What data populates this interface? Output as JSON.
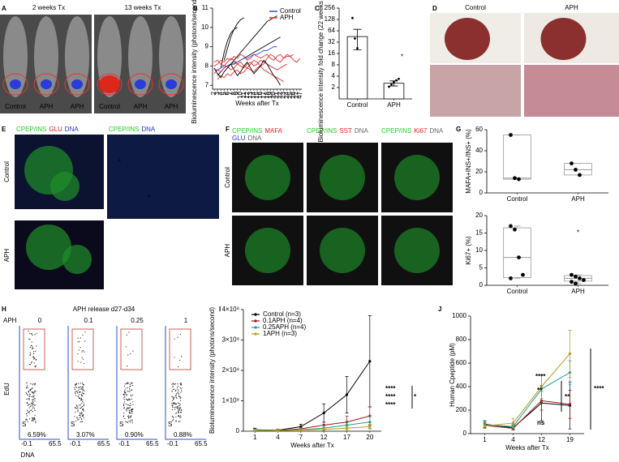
{
  "panel_labels": [
    "A",
    "B",
    "C",
    "D",
    "E",
    "F",
    "G",
    "H",
    "I",
    "J"
  ],
  "panel_A": {
    "headers": [
      "2 weeks Tx",
      "13 weeks Tx"
    ],
    "mouse_labels": [
      "Control",
      "APH",
      "APH",
      "Control",
      "APH",
      "APH"
    ]
  },
  "panel_D": {
    "headers": [
      "Control",
      "APH"
    ]
  },
  "panel_E": {
    "stains": [
      [
        {
          "text": "CPEP/INS",
          "color": "#22cc22"
        },
        {
          "text": "GLU",
          "color": "#ee2222"
        },
        {
          "text": "DNA",
          "color": "#2233dd"
        }
      ],
      [
        {
          "text": "CPEP/INS",
          "color": "#22cc22"
        },
        {
          "text": "DNA",
          "color": "#2233dd"
        }
      ]
    ],
    "rows": [
      "Control",
      "APH"
    ],
    "marks": [
      "*",
      "*"
    ]
  },
  "panel_F": {
    "stains": [
      [
        {
          "text": "CPEP/INS",
          "color": "#22cc22"
        },
        {
          "text": "MAFA",
          "color": "#ee2222"
        }
      ],
      [
        {
          "text": "GLU",
          "color": "#2233dd"
        },
        {
          "text": "DNA",
          "color": "#666666"
        }
      ],
      [
        {
          "text": "CPEP/INS",
          "color": "#22cc22"
        },
        {
          "text": "SST",
          "color": "#ee2222"
        },
        {
          "text": "DNA",
          "color": "#666666"
        }
      ],
      [
        {
          "text": "CPEP/INS",
          "color": "#22cc22"
        },
        {
          "text": "Ki67",
          "color": "#ee2222"
        },
        {
          "text": "DNA",
          "color": "#666666"
        }
      ]
    ],
    "rows": [
      "Control",
      "APH"
    ]
  },
  "panel_H": {
    "title": "APH release d27-d34",
    "group_label": "APH",
    "doses": [
      "0",
      "0.1",
      "0.25",
      "1"
    ],
    "gate_label": "S",
    "percentages": [
      "6.59%",
      "3.07%",
      "0.90%",
      "0.88%"
    ],
    "ylabel": "EdU",
    "xlabel": "DNA",
    "x_tick_labels": [
      "-0.1",
      "65.5"
    ],
    "color": "#c0392b"
  },
  "chart_data": [
    {
      "type": "multiline",
      "ylabel": "Bioluminescence intensity (photons/second) (log 10)",
      "xlabel": "Weeks after Tx",
      "legend": "upper right",
      "categories": [
        2,
        3,
        4,
        5,
        6,
        7,
        8,
        9,
        10,
        11,
        12,
        13,
        14,
        15,
        16,
        17,
        18,
        19,
        20,
        21,
        22,
        23,
        24,
        25,
        26,
        27,
        47
      ],
      "ylim": [
        6.8,
        11
      ],
      "yticks": [
        7,
        8,
        9,
        10,
        11
      ],
      "series": [
        {
          "name": "Control",
          "color": "#2f4fe0",
          "lines": [
            {
              "color": "#000000",
              "values": [
                null,
                null,
                null,
                8.3,
                8.9,
                9.5,
                9.9,
                10.2,
                10.4,
                10.5,
                null,
                null,
                null,
                null,
                null,
                null,
                null,
                null,
                null,
                null,
                null,
                null,
                null,
                null,
                null,
                null,
                null
              ]
            },
            {
              "color": "#000000",
              "values": [
                null,
                null,
                7.9,
                8.7,
                9.3,
                9.7,
                9.9,
                10.0,
                null,
                null,
                null,
                null,
                null,
                null,
                null,
                null,
                null,
                null,
                null,
                null,
                null,
                null,
                null,
                null,
                null,
                null,
                null
              ]
            },
            {
              "color": "#000000",
              "values": [
                null,
                7.5,
                7.7,
                7.9,
                8.0,
                8.1,
                8.3,
                8.5,
                8.7,
                8.9,
                9.1,
                9.3,
                9.5,
                9.7,
                9.9,
                10.1,
                10.3,
                10.4,
                10.5,
                10.6,
                null,
                null,
                null,
                null,
                null,
                null,
                null
              ]
            },
            {
              "color": "#000000",
              "values": [
                null,
                null,
                null,
                null,
                8.0,
                8.1,
                8.1,
                8.2,
                8.3,
                8.4,
                8.5,
                8.6,
                8.7,
                8.8,
                8.9,
                9.0,
                9.1,
                9.2,
                9.3,
                9.4,
                9.5,
                null,
                null,
                null,
                null,
                null,
                null
              ]
            },
            {
              "color": "#2f4fe0",
              "values": [
                7.8,
                7.8,
                7.9,
                8.0,
                8.0,
                8.1,
                8.2,
                8.2,
                8.3,
                8.4,
                8.4,
                8.5,
                8.6,
                8.6,
                8.7,
                8.8,
                8.8,
                8.9,
                9.0,
                9.0,
                null,
                null,
                null,
                null,
                null,
                null,
                null
              ]
            }
          ]
        },
        {
          "name": "APH",
          "color": "#e03030",
          "lines": [
            {
              "color": "#e03030",
              "values": [
                8.0,
                8.1,
                8.3,
                8.2,
                8.4,
                8.3,
                8.5,
                8.4,
                8.6,
                8.5,
                8.3,
                8.4,
                8.6,
                8.5,
                8.4,
                8.5,
                8.6,
                8.4,
                8.3,
                8.5,
                8.6,
                8.4,
                8.5,
                8.5,
                8.6,
                null,
                null
              ]
            },
            {
              "color": "#e03030",
              "values": [
                7.6,
                7.8,
                7.7,
                7.9,
                8.0,
                7.8,
                7.9,
                8.1,
                8.0,
                7.9,
                8.1,
                8.2,
                8.0,
                8.1,
                8.3,
                8.2,
                8.1,
                8.0,
                7.9,
                7.8,
                7.9,
                8.0,
                8.1,
                null,
                null,
                null,
                null
              ]
            },
            {
              "color": "#e03030",
              "values": [
                null,
                7.3,
                7.5,
                7.4,
                7.6,
                7.5,
                7.7,
                7.8,
                7.6,
                7.7,
                7.9,
                7.8,
                7.7,
                7.9,
                8.0,
                7.8,
                7.7,
                7.6,
                7.5,
                7.4,
                7.3,
                7.2,
                null,
                null,
                null,
                null,
                null
              ]
            },
            {
              "color": "#e03030",
              "values": [
                8.2,
                8.3,
                8.1,
                8.0,
                8.2,
                8.4,
                8.3,
                8.1,
                8.2,
                8.0,
                7.9,
                8.1,
                8.3,
                8.2,
                8.0,
                8.1,
                8.4,
                8.6,
                8.5,
                8.3,
                8.2,
                8.4,
                8.6,
                8.5,
                8.3,
                8.2,
                8.4
              ]
            },
            {
              "color": "#000000",
              "values": [
                7.9,
                7.6,
                7.4,
                7.7,
                7.9,
                8.1,
                7.8,
                7.5,
                7.7,
                8.0,
                8.2,
                7.9,
                7.6,
                7.8,
                8.0,
                8.3,
                8.1,
                7.8,
                7.5,
                7.3,
                7.0,
                null,
                null,
                null,
                null,
                null,
                null
              ]
            }
          ]
        }
      ]
    },
    {
      "type": "bar_log",
      "ylabel": "Bioluminescence intensity fold change (22 weeks vs 2 weeks)",
      "categories": [
        "Control",
        "APH"
      ],
      "values": [
        45,
        2.6
      ],
      "errors": [
        25,
        0.4
      ],
      "points": [
        [
          140,
          40,
          22
        ],
        [
          2.1,
          2.4,
          2.8,
          3.1,
          3.4
        ]
      ],
      "color": "#ffffff",
      "ylim": [
        1,
        256
      ],
      "yticks": [
        2,
        4,
        8,
        16,
        32,
        64,
        128,
        256
      ],
      "annotation": "*"
    },
    {
      "type": "box",
      "ylabel": "MAFA+INS+/INS+ (%)",
      "categories": [
        "Control",
        "APH"
      ],
      "ylim": [
        0,
        60
      ],
      "yticks": [
        0,
        20,
        40,
        60
      ],
      "boxes": [
        {
          "min": 13,
          "q1": 13,
          "median": 14,
          "q3": 55,
          "max": 55,
          "points": [
            55,
            14,
            13
          ]
        },
        {
          "min": 17,
          "q1": 17,
          "median": 22,
          "q3": 28,
          "max": 28,
          "points": [
            28,
            22,
            17
          ]
        }
      ]
    },
    {
      "type": "box",
      "ylabel": "Ki67+ (%)",
      "categories": [
        "Control",
        "APH"
      ],
      "ylim": [
        0,
        20
      ],
      "yticks": [
        0,
        5,
        10,
        15,
        20
      ],
      "annotation": "*",
      "boxes": [
        {
          "min": 2,
          "q1": 2.2,
          "median": 8,
          "q3": 16.5,
          "max": 17,
          "points": [
            17,
            16,
            8,
            3,
            2
          ]
        },
        {
          "min": 0.5,
          "q1": 1.2,
          "median": 2,
          "q3": 2.8,
          "max": 3,
          "points": [
            3,
            2.5,
            2,
            1.5,
            1,
            0.5
          ]
        }
      ]
    },
    {
      "type": "line_err",
      "ylabel": "Bioluminescence intensity (photons/second)",
      "xlabel": "Weeks after Tx",
      "categories": [
        1,
        4,
        7,
        12,
        17,
        20
      ],
      "ylim": [
        0,
        400000000
      ],
      "yticks": [
        0,
        {
          "value": 100000000,
          "label": "1×10⁸"
        },
        {
          "value": 200000000,
          "label": "2×10⁸"
        },
        {
          "value": 300000000,
          "label": "3×10⁸"
        },
        {
          "value": 400000000,
          "label": "4×10⁸"
        }
      ],
      "series": [
        {
          "name": "Control (n=3)",
          "color": "#000000",
          "values": [
            5000000,
            3000000,
            15000000,
            60000000,
            120000000,
            230000000
          ],
          "errors": [
            5000000,
            3000000,
            8000000,
            30000000,
            60000000,
            150000000
          ]
        },
        {
          "name": "0.1APH (n=4)",
          "color": "#a01818",
          "values": [
            4000000,
            2000000,
            8000000,
            20000000,
            30000000,
            50000000
          ],
          "errors": [
            3000000,
            2000000,
            5000000,
            10000000,
            20000000,
            30000000
          ]
        },
        {
          "name": "0.25APH (n=4)",
          "color": "#1f9e96",
          "values": [
            5000000,
            2000000,
            5000000,
            10000000,
            20000000,
            30000000
          ],
          "errors": [
            3000000,
            2000000,
            4000000,
            8000000,
            10000000,
            20000000
          ]
        },
        {
          "name": "1APH (n=3)",
          "color": "#b59a1c",
          "values": [
            3000000,
            2000000,
            4000000,
            6000000,
            10000000,
            15000000
          ],
          "errors": [
            2000000,
            1000000,
            3000000,
            4000000,
            6000000,
            8000000
          ]
        }
      ],
      "annotations": [
        {
          "text": "****",
          "color": "#a01818"
        },
        {
          "text": "****",
          "color": "#1f9e96"
        },
        {
          "text": "****",
          "color": "#b59a1c"
        },
        {
          "text": "*",
          "color": "#000000"
        }
      ]
    },
    {
      "type": "line_err",
      "ylabel": "Human Cpeptide (pM)",
      "xlabel": "Weeks after Tx",
      "categories": [
        1,
        4,
        12,
        19
      ],
      "ylim": [
        0,
        1000
      ],
      "yticks": [
        0,
        200,
        400,
        600,
        800,
        1000
      ],
      "series": [
        {
          "color": "#000000",
          "values": [
            80,
            50,
            260,
            240
          ],
          "errors": [
            30,
            20,
            150,
            200
          ]
        },
        {
          "color": "#a01818",
          "values": [
            70,
            45,
            280,
            250
          ],
          "errors": [
            25,
            15,
            80,
            120
          ]
        },
        {
          "color": "#1f9e96",
          "values": [
            75,
            60,
            380,
            520
          ],
          "errors": [
            30,
            20,
            120,
            100
          ]
        },
        {
          "color": "#b59a1c",
          "values": [
            65,
            90,
            400,
            680
          ],
          "errors": [
            20,
            40,
            100,
            200
          ]
        }
      ],
      "annotations": [
        {
          "text": "****",
          "color": "#b59a1c"
        },
        {
          "text": "**",
          "color": "#1f9e96"
        },
        {
          "text": "ns",
          "color": "#a01818"
        },
        {
          "text": "**",
          "color": "#000000"
        },
        {
          "text": "****",
          "color": "#000000"
        }
      ]
    }
  ]
}
